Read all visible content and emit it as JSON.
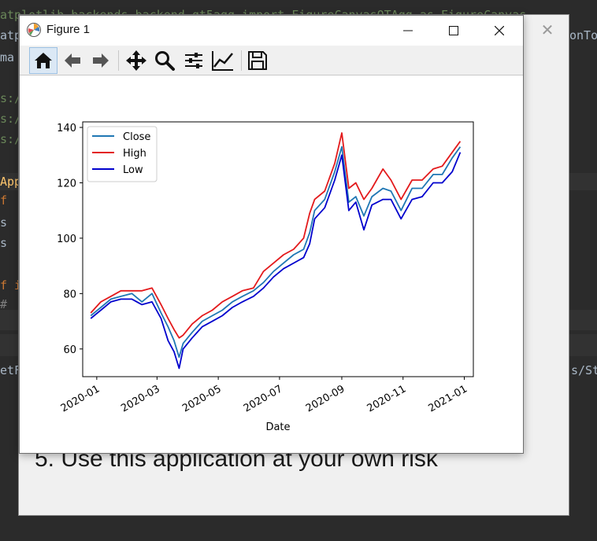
{
  "background": {
    "code_lines": [
      "atplotlib.backends.backend_qt5agg import FigureCanvasQTAgg as FigureCanvas",
      "atpl",
      "ma",
      "s:/",
      "s:/",
      "s:/",
      "App",
      "f",
      "s",
      "s",
      "f i",
      "#",
      "etF"
    ],
    "right_fragments": [
      "onTo",
      "s/St"
    ],
    "notice_text": "5. Use this application at your own risk"
  },
  "window": {
    "title": "Figure 1",
    "minimize_icon": "minimize-icon",
    "maximize_icon": "maximize-icon",
    "close_icon": "close-icon"
  },
  "toolbar": {
    "buttons": [
      {
        "name": "home",
        "icon": "home-icon",
        "active": true
      },
      {
        "name": "back",
        "icon": "arrow-left-icon"
      },
      {
        "name": "forward",
        "icon": "arrow-right-icon"
      },
      {
        "name": "pan",
        "icon": "move-icon"
      },
      {
        "name": "zoom",
        "icon": "magnifier-icon"
      },
      {
        "name": "subplots",
        "icon": "sliders-icon"
      },
      {
        "name": "edit-axes",
        "icon": "chart-line-icon"
      },
      {
        "name": "save",
        "icon": "floppy-icon"
      }
    ]
  },
  "chart_data": {
    "type": "line",
    "title": "",
    "xlabel": "Date",
    "ylabel": "",
    "ylim": [
      50,
      142
    ],
    "xlim": [
      "2019-12-18",
      "2021-01-10"
    ],
    "x_ticks": [
      "2020-01",
      "2020-03",
      "2020-05",
      "2020-07",
      "2020-09",
      "2020-11",
      "2021-01"
    ],
    "y_ticks": [
      60,
      80,
      100,
      120,
      140
    ],
    "grid": false,
    "legend": "top-left",
    "x": [
      "2019-12-26",
      "2020-01-05",
      "2020-01-15",
      "2020-01-25",
      "2020-02-05",
      "2020-02-15",
      "2020-02-25",
      "2020-03-05",
      "2020-03-12",
      "2020-03-18",
      "2020-03-23",
      "2020-03-27",
      "2020-04-05",
      "2020-04-15",
      "2020-04-25",
      "2020-05-05",
      "2020-05-15",
      "2020-05-25",
      "2020-06-05",
      "2020-06-15",
      "2020-06-25",
      "2020-07-05",
      "2020-07-15",
      "2020-07-25",
      "2020-07-31",
      "2020-08-05",
      "2020-08-15",
      "2020-08-25",
      "2020-09-01",
      "2020-09-08",
      "2020-09-15",
      "2020-09-23",
      "2020-10-01",
      "2020-10-12",
      "2020-10-20",
      "2020-10-30",
      "2020-11-10",
      "2020-11-20",
      "2020-12-01",
      "2020-12-10",
      "2020-12-20",
      "2020-12-28"
    ],
    "series": [
      {
        "name": "Close",
        "color": "#1f77b4",
        "values": [
          72,
          75,
          78,
          79,
          80,
          77,
          80,
          73,
          68,
          63,
          57,
          62,
          66,
          70,
          72,
          74,
          77,
          79,
          81,
          84,
          88,
          91,
          94,
          96,
          102,
          110,
          114,
          124,
          133,
          113,
          115,
          108,
          115,
          118,
          117,
          110,
          118,
          118,
          123,
          123,
          129,
          133
        ]
      },
      {
        "name": "High",
        "color": "#e31a1c",
        "values": [
          73,
          77,
          79,
          81,
          81,
          81,
          82,
          76,
          71,
          67,
          64,
          65,
          69,
          72,
          74,
          77,
          79,
          81,
          82,
          88,
          91,
          94,
          96,
          100,
          109,
          114,
          117,
          127,
          138,
          118,
          120,
          114,
          118,
          125,
          121,
          114,
          121,
          121,
          125,
          126,
          131,
          135
        ]
      },
      {
        "name": "Low",
        "color": "#0000cd",
        "values": [
          71,
          74,
          77,
          78,
          78,
          76,
          77,
          71,
          63,
          59,
          53,
          60,
          64,
          68,
          70,
          72,
          75,
          77,
          79,
          82,
          86,
          89,
          91,
          93,
          98,
          107,
          111,
          121,
          130,
          110,
          113,
          103,
          112,
          114,
          114,
          107,
          114,
          115,
          120,
          120,
          124,
          131
        ]
      }
    ]
  }
}
